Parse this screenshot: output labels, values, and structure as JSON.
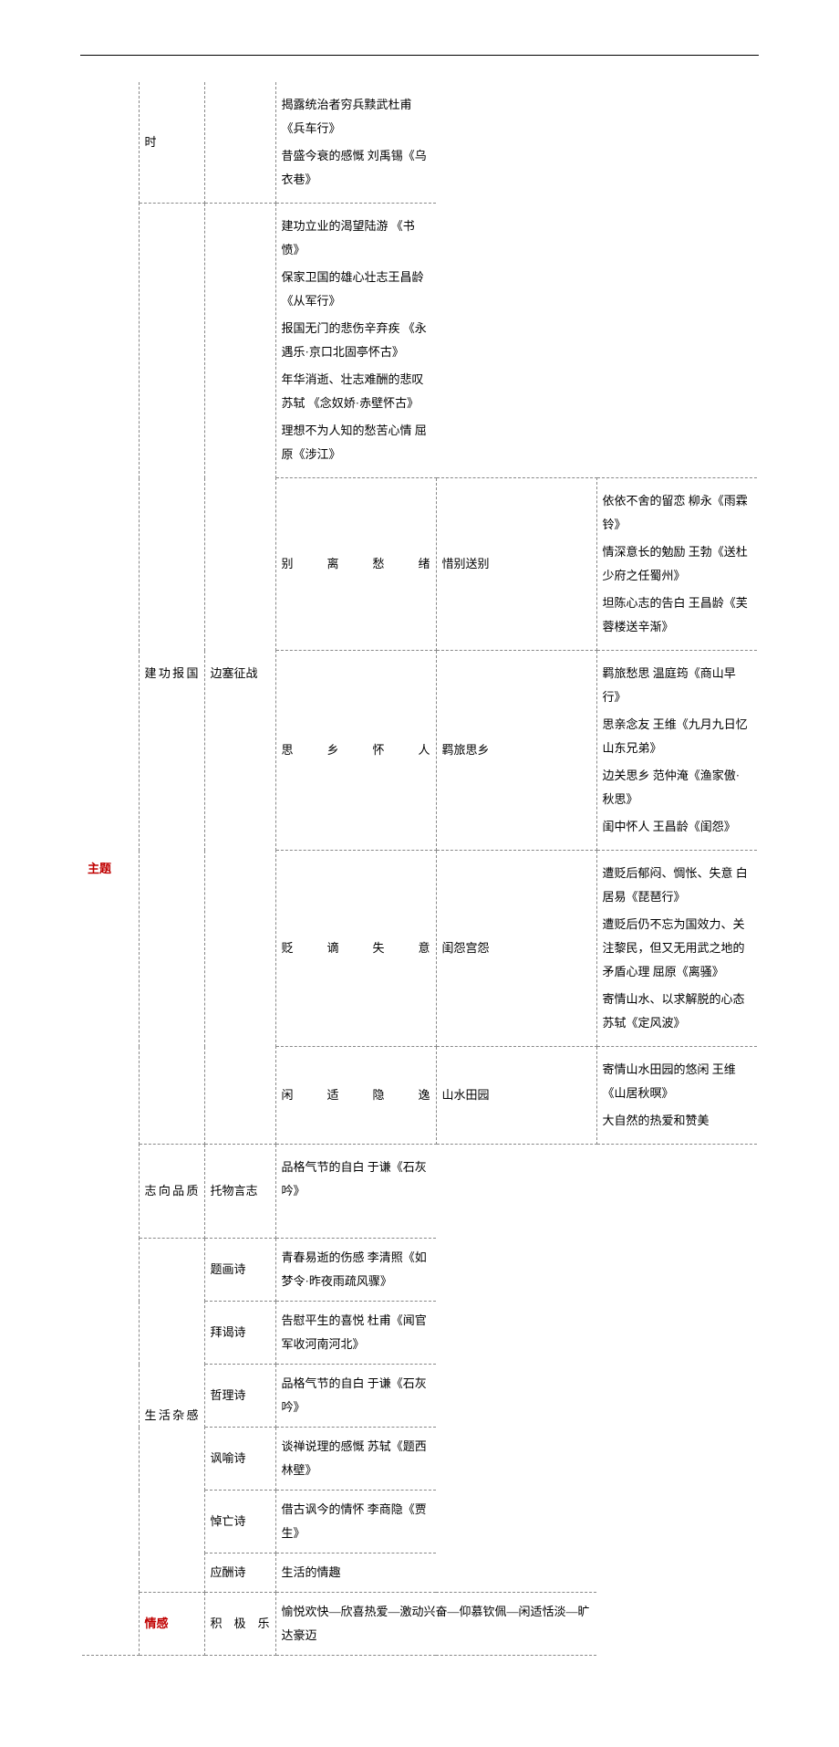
{
  "theme": {
    "label": "主题",
    "color": "#c00000",
    "rows": [
      {
        "cat": "时",
        "sub": "",
        "lines": [
          "揭露统治者穷兵黩武杜甫《兵车行》",
          "昔盛今衰的感慨     刘禹锡《乌衣巷》"
        ]
      },
      {
        "cat": "建功报国",
        "sub": "边塞征战",
        "lines": [
          "建功立业的渴望陆游       《书愤》",
          "保家卫国的雄心壮志王昌龄       《从军行》",
          "报国无门的悲伤辛弃疾        《永遇乐·京口北固亭怀古》",
          "年华消逝、壮志难酬的悲叹苏轼       《念奴娇·赤壁怀古》",
          "理想不为人知的愁苦心情       屈原《涉江》"
        ]
      },
      {
        "cat": "别离愁绪",
        "sub": "惜别送别",
        "lines": [
          "依依不舍的留恋     柳永《雨霖铃》",
          "情深意长的勉励     王勃《送杜少府之任蜀州》",
          "坦陈心志的告白     王昌龄《芙蓉楼送辛渐》"
        ]
      },
      {
        "cat": "思乡怀人",
        "sub": "羁旅思乡",
        "lines": [
          "羁旅愁思     温庭筠《商山早行》",
          "思亲念友     王维《九月九日忆山东兄弟》",
          "边关思乡     范仲淹《渔家傲·秋思》",
          "闺中怀人     王昌龄《闺怨》"
        ]
      },
      {
        "cat": "贬谪失意",
        "sub": "闺怨宫怨",
        "lines": [
          "遭贬后郁闷、惆怅、失意     白居易《琵琶行》",
          "遭贬后仍不忘为国效力、关注黎民，但又无用武之地的矛盾心理     屈原《离骚》",
          "寄情山水、以求解脱的心态     苏轼《定风波》"
        ]
      },
      {
        "cat": "闲适隐逸",
        "sub": "山水田园",
        "lines": [
          "寄情山水田园的悠闲     王维《山居秋暝》",
          "大自然的热爱和赞美"
        ]
      },
      {
        "cat": "志向品质",
        "sub": "托物言志",
        "lines": [
          "品格气节的自白     于谦《石灰吟》"
        ]
      },
      {
        "cat": "生活杂感",
        "subs": [
          {
            "sub": "题画诗",
            "line": "青春易逝的伤感     李清照《如梦令·昨夜雨疏风骤》"
          },
          {
            "sub": "拜谒诗",
            "line": "告慰平生的喜悦     杜甫《闻官军收河南河北》"
          },
          {
            "sub": "哲理诗",
            "line": "品格气节的自白     于谦《石灰吟》"
          },
          {
            "sub": "讽喻诗",
            "line": "谈禅说理的感慨     苏轼《题西林壁》"
          },
          {
            "sub": "悼亡诗",
            "line": "借古讽今的情怀     李商隐《贾生》"
          },
          {
            "sub": "应酬诗",
            "line": "生活的情趣"
          }
        ]
      }
    ]
  },
  "emotion": {
    "label": "情感",
    "color": "#c00000",
    "cat": "积极乐",
    "content": "愉悦欢快—欣喜热爱—激动兴奋—仰慕钦佩—闲适恬淡—旷达豪迈"
  },
  "style": {
    "border_color": "#888888",
    "border_style": "dashed",
    "font_size": 13,
    "line_height": 2.0,
    "page_bg": "#ffffff",
    "text_color": "#000000"
  }
}
